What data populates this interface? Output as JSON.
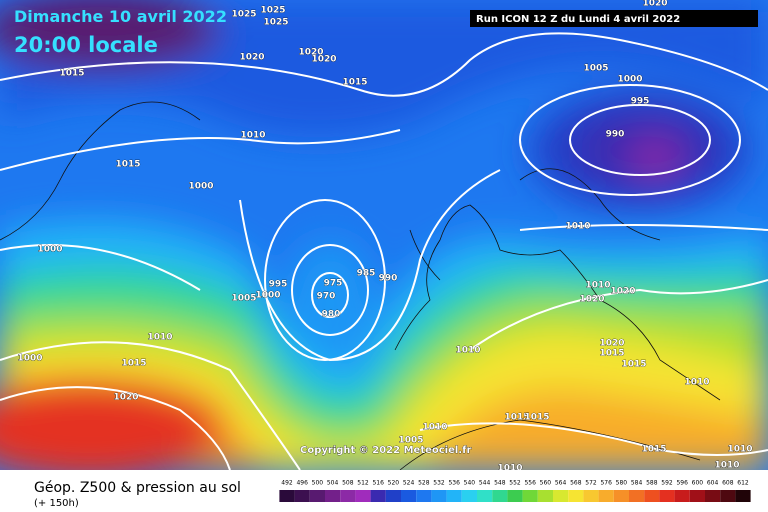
{
  "header": {
    "date": "Dimanche 10 avril 2022",
    "time": "20:00 locale",
    "run": "Run ICON 12 Z du Lundi 4 avril 2022"
  },
  "footer": {
    "title": "Géop. Z500 & pression au sol",
    "subtitle": "(+ 150h)",
    "copyright": "Copyright © 2022 Meteociel.fr"
  },
  "isobar_labels": [
    "1025",
    "1025",
    "1025",
    "1020",
    "1020",
    "1020",
    "1015",
    "1015",
    "1005",
    "1000",
    "995",
    "990",
    "1010",
    "1015",
    "1000",
    "1010",
    "1000",
    "995",
    "1005",
    "1000",
    "975",
    "970",
    "985",
    "990",
    "980",
    "1010",
    "1000",
    "1015",
    "1010",
    "1020",
    "1010",
    "1020",
    "1020",
    "1020",
    "1015",
    "1015",
    "1010",
    "1005",
    "1010",
    "1015",
    "1015",
    "1015",
    "1010",
    "1010",
    "1010",
    "1020"
  ],
  "legend": {
    "values": [
      492,
      496,
      500,
      504,
      508,
      512,
      516,
      520,
      524,
      528,
      532,
      536,
      540,
      544,
      548,
      552,
      556,
      560,
      564,
      568,
      572,
      576,
      580,
      584,
      588,
      592,
      596,
      600,
      604,
      608,
      612
    ],
    "colors": [
      "#2a0a3a",
      "#3c1050",
      "#581a70",
      "#73208a",
      "#8c2aa6",
      "#a02cbc",
      "#3a2ab0",
      "#2040c8",
      "#1a5ae0",
      "#1e78f0",
      "#1f96f5",
      "#22b4f8",
      "#2ad0f0",
      "#30e0c8",
      "#30d890",
      "#3ccc50",
      "#70d838",
      "#a8e030",
      "#d8e830",
      "#f6e432",
      "#f8c830",
      "#f8ac2c",
      "#f69028",
      "#f27024",
      "#ee5020",
      "#e43020",
      "#c81c1c",
      "#a01018",
      "#780c14",
      "#4e0810",
      "#200408"
    ]
  }
}
